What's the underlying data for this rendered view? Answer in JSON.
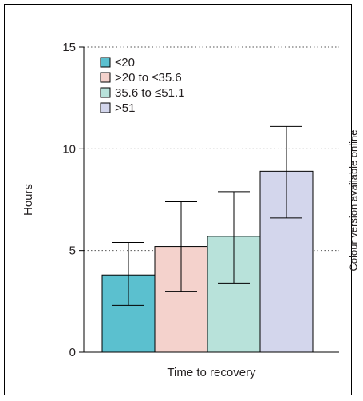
{
  "side_note": "Colour version available online",
  "colors": {
    "series": [
      "#5bc0cf",
      "#f4d2cc",
      "#b8e2da",
      "#d3d6ec"
    ],
    "axis": "#000000",
    "grid": "#555555"
  },
  "chart_data": {
    "type": "bar",
    "title": "",
    "xlabel": "Time to recovery",
    "ylabel": "Hours",
    "ylim": [
      0,
      15
    ],
    "yticks": [
      0,
      5,
      10,
      15
    ],
    "grid": "dotted horizontal",
    "legend": "top-left",
    "categories": [
      ""
    ],
    "series": [
      {
        "name": "≤20",
        "values": [
          3.8
        ],
        "error_low": [
          2.3
        ],
        "error_high": [
          5.4
        ]
      },
      {
        "name": ">20 to ≤35.6",
        "values": [
          5.2
        ],
        "error_low": [
          3.0
        ],
        "error_high": [
          7.4
        ]
      },
      {
        "name": "35.6 to ≤51.1",
        "values": [
          5.7
        ],
        "error_low": [
          3.4
        ],
        "error_high": [
          7.9
        ]
      },
      {
        "name": ">51",
        "values": [
          8.9
        ],
        "error_low": [
          6.6
        ],
        "error_high": [
          11.1
        ]
      }
    ]
  }
}
